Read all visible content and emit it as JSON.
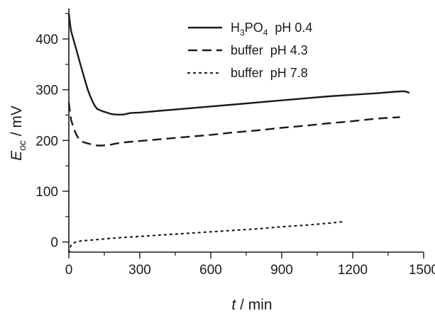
{
  "chart_data": {
    "type": "line",
    "title": "",
    "xlabel": {
      "italic": "t",
      "rest": " / min"
    },
    "ylabel": {
      "italic": "E",
      "sub": "oc",
      "rest": " / mV"
    },
    "xlim": [
      0,
      1500
    ],
    "ylim": [
      -20,
      460
    ],
    "xticks": [
      0,
      300,
      600,
      900,
      1200,
      1500
    ],
    "xtick_labels": [
      "0",
      "300",
      "600",
      "900",
      "1200",
      "1500"
    ],
    "yticks": [
      0,
      100,
      200,
      300,
      400
    ],
    "ytick_labels": [
      "0",
      "100",
      "200",
      "300",
      "400"
    ],
    "grid": false,
    "legend_position": "top-right",
    "series": [
      {
        "label_parts": [
          {
            "t": "H",
            "sub": false
          },
          {
            "t": "3",
            "sub": true
          },
          {
            "t": "PO",
            "sub": false
          },
          {
            "t": "4",
            "sub": true
          },
          {
            "t": "  pH 0.4",
            "sub": false
          }
        ],
        "style": "solid",
        "color": "#1a1a1a",
        "points": [
          [
            0,
            450
          ],
          [
            5,
            430
          ],
          [
            10,
            415
          ],
          [
            20,
            398
          ],
          [
            30,
            382
          ],
          [
            40,
            365
          ],
          [
            50,
            348
          ],
          [
            60,
            332
          ],
          [
            70,
            316
          ],
          [
            80,
            300
          ],
          [
            90,
            288
          ],
          [
            100,
            277
          ],
          [
            110,
            268
          ],
          [
            120,
            262
          ],
          [
            140,
            258
          ],
          [
            160,
            255
          ],
          [
            180,
            252
          ],
          [
            200,
            251
          ],
          [
            230,
            251
          ],
          [
            260,
            254
          ],
          [
            300,
            255
          ],
          [
            400,
            259
          ],
          [
            500,
            263
          ],
          [
            600,
            267
          ],
          [
            700,
            271
          ],
          [
            800,
            275
          ],
          [
            900,
            279
          ],
          [
            1000,
            283
          ],
          [
            1100,
            287
          ],
          [
            1200,
            290
          ],
          [
            1300,
            293
          ],
          [
            1380,
            296
          ],
          [
            1420,
            297
          ],
          [
            1440,
            294
          ]
        ]
      },
      {
        "label_parts": [
          {
            "t": "buffer  pH 4.3",
            "sub": false
          }
        ],
        "style": "dashed",
        "color": "#1a1a1a",
        "points": [
          [
            0,
            275
          ],
          [
            5,
            255
          ],
          [
            10,
            240
          ],
          [
            20,
            225
          ],
          [
            30,
            213
          ],
          [
            40,
            205
          ],
          [
            50,
            200
          ],
          [
            60,
            197
          ],
          [
            80,
            194
          ],
          [
            100,
            192
          ],
          [
            120,
            190
          ],
          [
            140,
            190
          ],
          [
            160,
            191
          ],
          [
            180,
            192
          ],
          [
            200,
            194
          ],
          [
            250,
            197
          ],
          [
            300,
            199
          ],
          [
            400,
            203
          ],
          [
            500,
            207
          ],
          [
            600,
            211
          ],
          [
            700,
            216
          ],
          [
            800,
            220
          ],
          [
            900,
            225
          ],
          [
            1000,
            229
          ],
          [
            1100,
            234
          ],
          [
            1200,
            238
          ],
          [
            1300,
            243
          ],
          [
            1400,
            246
          ]
        ]
      },
      {
        "label_parts": [
          {
            "t": "buffer  pH 7.8",
            "sub": false
          }
        ],
        "style": "dotted",
        "color": "#1a1a1a",
        "points": [
          [
            0,
            -20
          ],
          [
            5,
            -12
          ],
          [
            10,
            -6
          ],
          [
            20,
            -2
          ],
          [
            30,
            0
          ],
          [
            50,
            2
          ],
          [
            100,
            4
          ],
          [
            200,
            8
          ],
          [
            300,
            11
          ],
          [
            400,
            14
          ],
          [
            500,
            17
          ],
          [
            600,
            20
          ],
          [
            700,
            23
          ],
          [
            800,
            26
          ],
          [
            900,
            30
          ],
          [
            1000,
            33
          ],
          [
            1100,
            37
          ],
          [
            1160,
            40
          ]
        ]
      }
    ]
  }
}
